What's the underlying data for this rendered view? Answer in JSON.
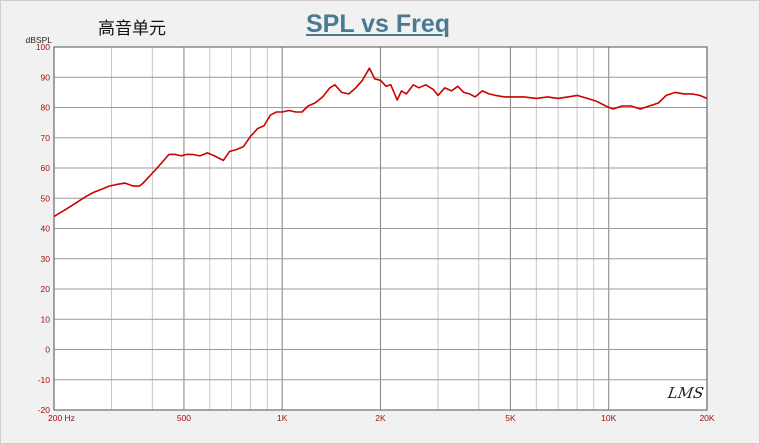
{
  "chart_title": "SPL vs Freq",
  "chart_subtitle": "高音单元",
  "logo_text": "LMS",
  "chart_data": {
    "type": "line",
    "title": "SPL vs Freq",
    "subtitle": "高音单元",
    "ylabel": "dBSPL",
    "xlabel": "",
    "x_scale": "log",
    "xlim": [
      200,
      20000
    ],
    "ylim": [
      -20,
      100
    ],
    "y_ticks": [
      -20,
      -10,
      0,
      10,
      20,
      30,
      40,
      50,
      60,
      70,
      80,
      90,
      100
    ],
    "y_tick_labels": [
      "-20",
      "-10",
      "0",
      "10",
      "20",
      "30",
      "40",
      "50",
      "60",
      "70",
      "80",
      "90",
      "100"
    ],
    "x_ticks": [
      200,
      500,
      1000,
      2000,
      5000,
      10000,
      20000
    ],
    "x_tick_labels": [
      "200  Hz",
      "500",
      "1K",
      "2K",
      "5K",
      "10K",
      "20K"
    ],
    "grid": true,
    "line_color": "#cc0000",
    "series": [
      {
        "x": [
          200,
          215,
          230,
          250,
          265,
          280,
          295,
          310,
          330,
          350,
          365,
          375,
          390,
          410,
          430,
          450,
          470,
          490,
          510,
          530,
          560,
          590,
          620,
          660,
          690,
          720,
          760,
          800,
          840,
          880,
          920,
          960,
          1000,
          1050,
          1100,
          1150,
          1200,
          1260,
          1330,
          1400,
          1450,
          1520,
          1600,
          1680,
          1760,
          1850,
          1920,
          2000,
          2080,
          2150,
          2250,
          2320,
          2400,
          2520,
          2620,
          2750,
          2900,
          3000,
          3150,
          3300,
          3450,
          3600,
          3750,
          3900,
          4100,
          4300,
          4500,
          4800,
          5100,
          5500,
          6000,
          6500,
          7000,
          7500,
          8000,
          8600,
          9200,
          9800,
          10300,
          11000,
          11700,
          12500,
          13300,
          14200,
          15000,
          16000,
          17000,
          18000,
          19000,
          20000
        ],
        "y": [
          44,
          46,
          48,
          50.5,
          52,
          53,
          54,
          54.5,
          55,
          54,
          54,
          55,
          57,
          59.5,
          62,
          64.5,
          64.5,
          64,
          64.5,
          64.5,
          64,
          65,
          64,
          62.5,
          65.5,
          66,
          67,
          70.5,
          73,
          74,
          77.5,
          78.5,
          78.5,
          79,
          78.5,
          78.5,
          80.5,
          81.5,
          83.5,
          86.5,
          87.5,
          85,
          84.5,
          86.5,
          89,
          93,
          89.5,
          89,
          87,
          87.5,
          82.5,
          85.5,
          84.5,
          87.5,
          86.5,
          87.5,
          86,
          84,
          86.5,
          85.5,
          87,
          85,
          84.5,
          83.5,
          85.5,
          84.5,
          84,
          83.5,
          83.5,
          83.5,
          83,
          83.5,
          83,
          83.5,
          84,
          83,
          82,
          80.5,
          79.5,
          80.5,
          80.5,
          79.5,
          80.5,
          81.5,
          84,
          85,
          84.5,
          84.5,
          84,
          83
        ]
      }
    ]
  }
}
